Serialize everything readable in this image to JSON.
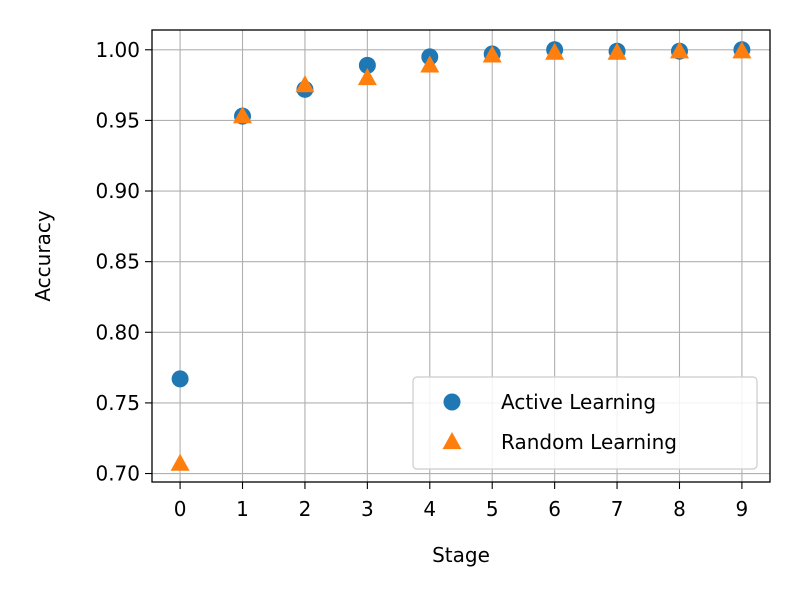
{
  "chart_data": {
    "type": "scatter",
    "xlabel": "Stage",
    "ylabel": "Accuracy",
    "x": [
      0,
      1,
      2,
      3,
      4,
      5,
      6,
      7,
      8,
      9
    ],
    "xlim": [
      -0.45,
      9.45
    ],
    "ylim": [
      0.694,
      1.014
    ],
    "xticks": [
      0,
      1,
      2,
      3,
      4,
      5,
      6,
      7,
      8,
      9
    ],
    "yticks": [
      0.7,
      0.75,
      0.8,
      0.85,
      0.9,
      0.95,
      1.0
    ],
    "ytick_labels": [
      "0.70",
      "0.75",
      "0.80",
      "0.85",
      "0.90",
      "0.95",
      "1.00"
    ],
    "grid": true,
    "legend_position": "lower-right",
    "series": [
      {
        "name": "Active Learning",
        "marker": "circle",
        "color": "#1f77b4",
        "values": [
          0.767,
          0.953,
          0.972,
          0.989,
          0.995,
          0.997,
          1.0,
          0.999,
          0.999,
          1.0
        ]
      },
      {
        "name": "Random Learning",
        "marker": "triangle",
        "color": "#ff7f0e",
        "values": [
          0.707,
          0.953,
          0.975,
          0.98,
          0.989,
          0.996,
          0.998,
          0.998,
          0.999,
          0.999
        ]
      }
    ]
  }
}
